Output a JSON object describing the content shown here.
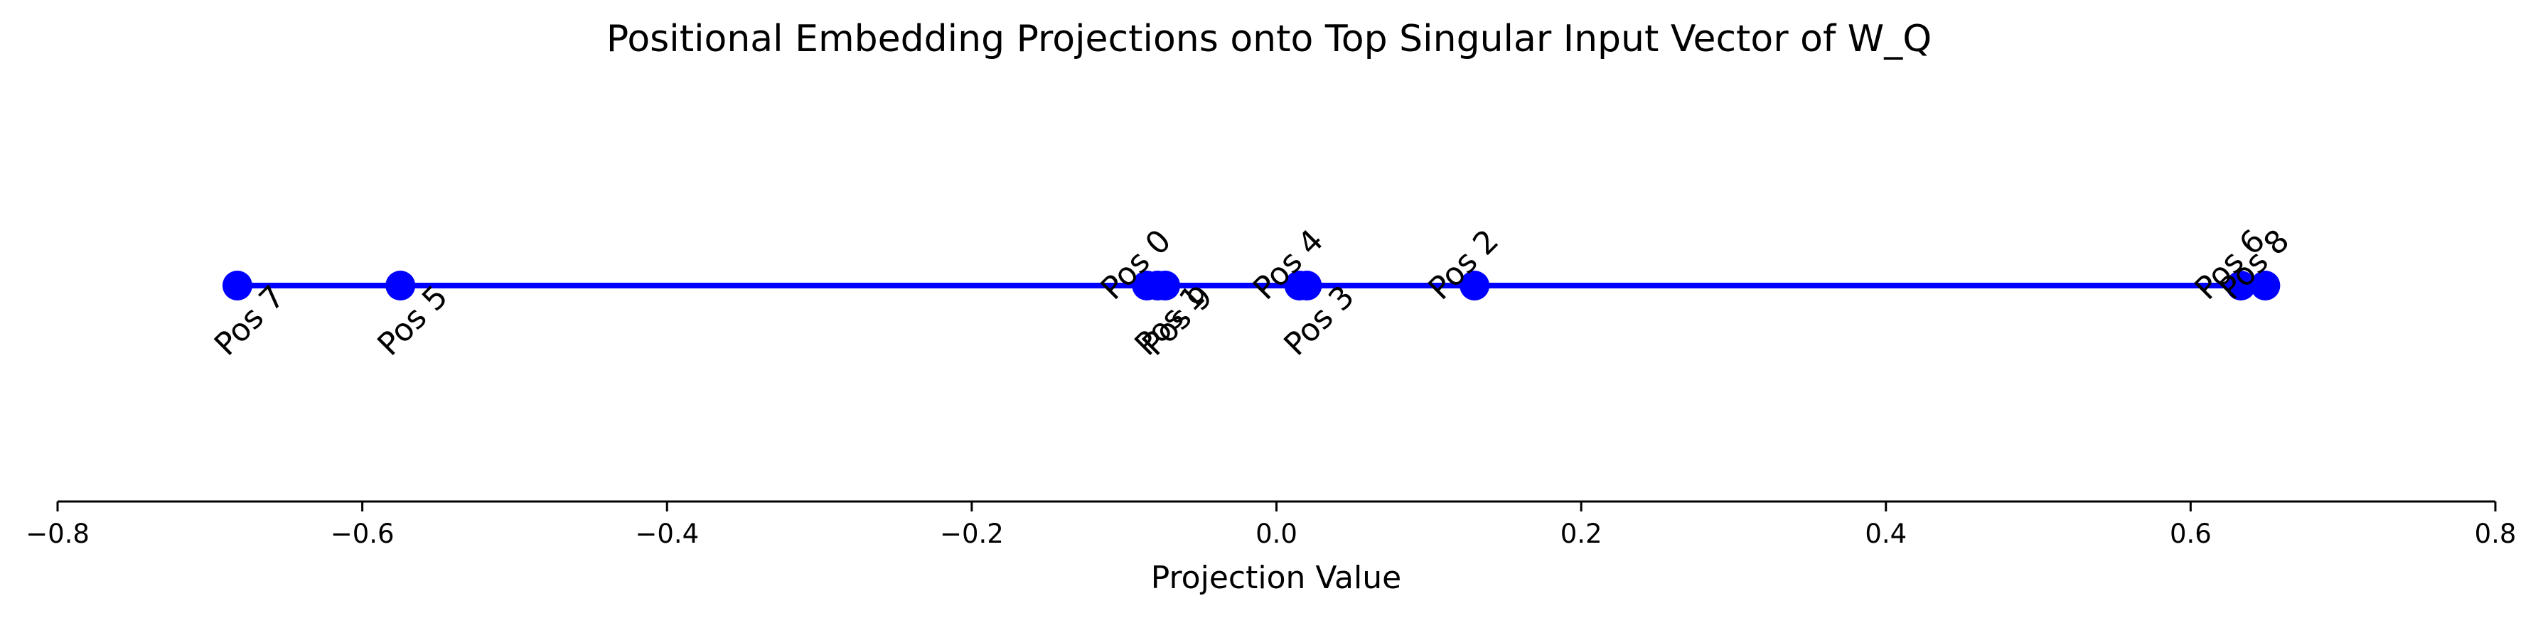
{
  "chart_data": {
    "type": "scatter",
    "title": "Positional Embedding Projections onto Top Singular Input Vector of W_Q",
    "xlabel": "Projection Value",
    "ylabel": "",
    "xlim": [
      -0.8,
      0.8
    ],
    "xticks": [
      -0.8,
      -0.6,
      -0.4,
      -0.2,
      0.0,
      0.2,
      0.4,
      0.6,
      0.8
    ],
    "xtick_labels": [
      "−0.8",
      "−0.6",
      "−0.4",
      "−0.2",
      "0.0",
      "0.2",
      "0.4",
      "0.6",
      "0.8"
    ],
    "grid": false,
    "color": "#0000ff",
    "points": [
      {
        "label": "Pos 0",
        "x": -0.085,
        "placement": "above"
      },
      {
        "label": "Pos 1",
        "x": -0.078,
        "placement": "below"
      },
      {
        "label": "Pos 2",
        "x": 0.13,
        "placement": "above"
      },
      {
        "label": "Pos 3",
        "x": 0.02,
        "placement": "below"
      },
      {
        "label": "Pos 4",
        "x": 0.015,
        "placement": "above"
      },
      {
        "label": "Pos 5",
        "x": -0.575,
        "placement": "below"
      },
      {
        "label": "Pos 6",
        "x": 0.633,
        "placement": "above"
      },
      {
        "label": "Pos 7",
        "x": -0.682,
        "placement": "below"
      },
      {
        "label": "Pos 8",
        "x": 0.649,
        "placement": "above"
      },
      {
        "label": "Pos 9",
        "x": -0.073,
        "placement": "below"
      }
    ]
  }
}
